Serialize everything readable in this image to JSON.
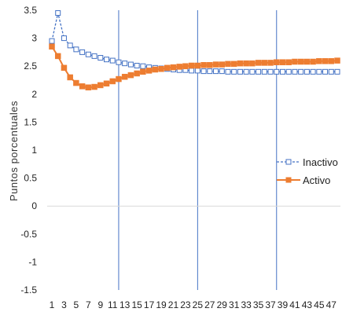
{
  "chart_data": {
    "type": "line",
    "title": "",
    "xlabel": "",
    "ylabel": "Puntos porcentuales",
    "ylim": [
      -1.5,
      3.5
    ],
    "yticks": [
      "3.5",
      "3",
      "2.5",
      "2",
      "1.5",
      "1",
      "0.5",
      "0",
      "-0.5",
      "-1",
      "-1.5"
    ],
    "xticks": [
      "1",
      "3",
      "5",
      "7",
      "9",
      "11",
      "13",
      "15",
      "17",
      "19",
      "21",
      "23",
      "25",
      "27",
      "29",
      "31",
      "33",
      "35",
      "37",
      "39",
      "41",
      "43",
      "45",
      "47"
    ],
    "vertical_lines_x": [
      12,
      25,
      38
    ],
    "legend_position": "right-middle",
    "x": [
      1,
      2,
      3,
      4,
      5,
      6,
      7,
      8,
      9,
      10,
      11,
      12,
      13,
      14,
      15,
      16,
      17,
      18,
      19,
      20,
      21,
      22,
      23,
      24,
      25,
      26,
      27,
      28,
      29,
      30,
      31,
      32,
      33,
      34,
      35,
      36,
      37,
      38,
      39,
      40,
      41,
      42,
      43,
      44,
      45,
      46,
      47,
      48
    ],
    "series": [
      {
        "name": "Inactivo",
        "color": "#4472C4",
        "values": [
          2.95,
          3.45,
          3.0,
          2.87,
          2.8,
          2.75,
          2.71,
          2.68,
          2.65,
          2.62,
          2.6,
          2.57,
          2.55,
          2.53,
          2.51,
          2.5,
          2.48,
          2.47,
          2.46,
          2.45,
          2.44,
          2.43,
          2.43,
          2.42,
          2.42,
          2.41,
          2.41,
          2.41,
          2.41,
          2.4,
          2.4,
          2.4,
          2.4,
          2.4,
          2.4,
          2.4,
          2.4,
          2.4,
          2.4,
          2.4,
          2.4,
          2.4,
          2.4,
          2.4,
          2.4,
          2.4,
          2.4,
          2.4
        ]
      },
      {
        "name": "Activo",
        "color": "#ED7D31",
        "values": [
          2.85,
          2.68,
          2.47,
          2.3,
          2.2,
          2.14,
          2.12,
          2.13,
          2.16,
          2.19,
          2.23,
          2.27,
          2.31,
          2.34,
          2.37,
          2.4,
          2.42,
          2.44,
          2.45,
          2.47,
          2.48,
          2.49,
          2.5,
          2.51,
          2.51,
          2.52,
          2.52,
          2.53,
          2.53,
          2.54,
          2.54,
          2.55,
          2.55,
          2.55,
          2.56,
          2.56,
          2.56,
          2.57,
          2.57,
          2.57,
          2.58,
          2.58,
          2.58,
          2.58,
          2.59,
          2.59,
          2.59,
          2.6
        ]
      }
    ]
  }
}
